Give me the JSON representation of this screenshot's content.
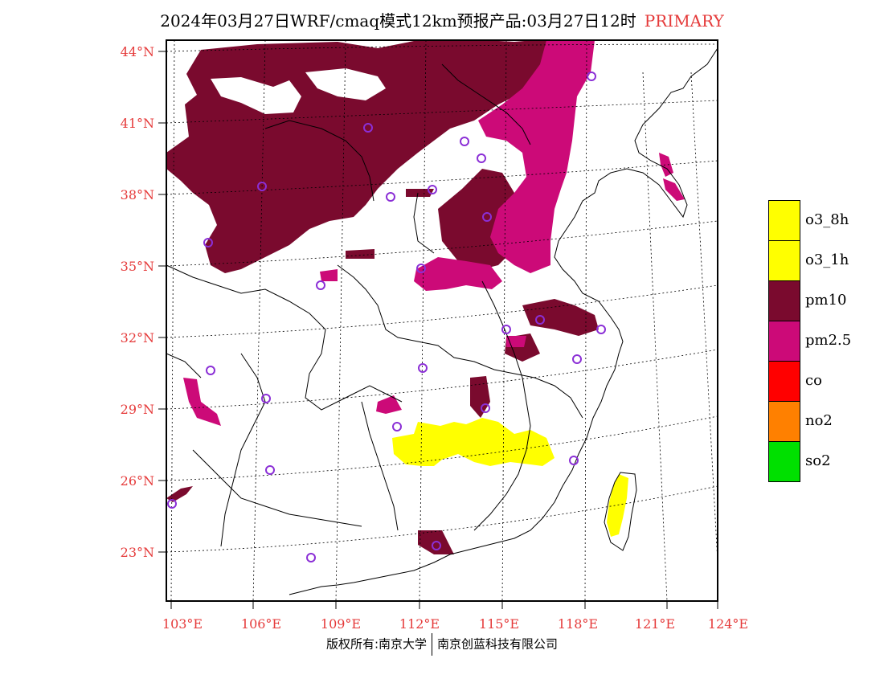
{
  "title": {
    "main": "2024年03月27日WRF/cmaq模式12km预报产品:03月27日12时",
    "tag": "PRIMARY"
  },
  "axes": {
    "lat_labels": [
      "44°N",
      "41°N",
      "38°N",
      "35°N",
      "32°N",
      "29°N",
      "26°N",
      "23°N"
    ],
    "lon_labels": [
      "103°E",
      "106°E",
      "109°E",
      "112°E",
      "115°E",
      "118°E",
      "121°E",
      "124°E"
    ],
    "label_color": "#e53a3a"
  },
  "legend": [
    {
      "label": "o3_8h",
      "color": "#ffff00"
    },
    {
      "label": "o3_1h",
      "color": "#ffff00"
    },
    {
      "label": "pm10",
      "color": "#7a0a2e"
    },
    {
      "label": "pm2.5",
      "color": "#cc0a78"
    },
    {
      "label": "co",
      "color": "#ff0000"
    },
    {
      "label": "no2",
      "color": "#ff8000"
    },
    {
      "label": "so2",
      "color": "#00e000"
    }
  ],
  "footer": {
    "left": "版权所有:南京大学",
    "right": "南京创蓝科技有限公司"
  }
}
